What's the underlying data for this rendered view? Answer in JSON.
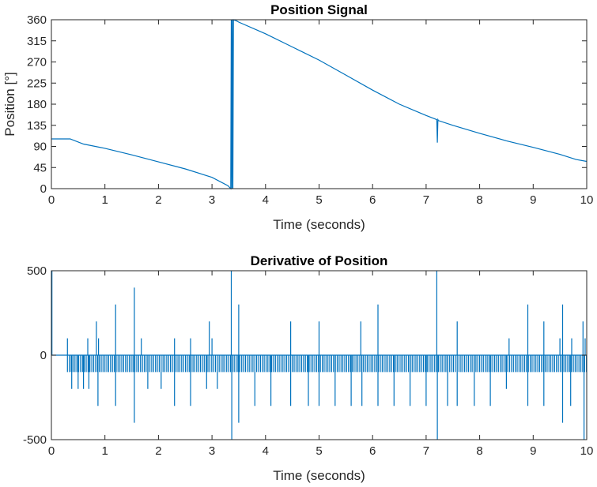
{
  "chart_data": [
    {
      "type": "line",
      "title": "Position Signal",
      "xlabel": "Time (seconds)",
      "ylabel": "Position [°]",
      "xlim": [
        0,
        10
      ],
      "ylim": [
        0,
        360
      ],
      "xticks": [
        0,
        1,
        2,
        3,
        4,
        5,
        6,
        7,
        8,
        9,
        10
      ],
      "yticks": [
        0,
        45,
        90,
        135,
        180,
        225,
        270,
        315,
        360
      ],
      "grid": false,
      "series_color": "#0072BD",
      "series": [
        {
          "x": [
            0,
            0.35,
            0.6,
            1.0,
            1.5,
            2.0,
            2.5,
            3.0,
            3.3,
            3.35,
            3.36,
            3.37,
            3.38,
            3.39,
            3.4,
            3.45,
            3.5,
            4.0,
            4.5,
            5.0,
            5.5,
            6.0,
            6.5,
            7.0,
            7.2,
            7.21,
            7.22,
            7.23,
            7.5,
            8.0,
            8.5,
            9.0,
            9.5,
            9.8,
            10.0
          ],
          "y": [
            106,
            106,
            95,
            86,
            72,
            57,
            42,
            24,
            6,
            0,
            360,
            0,
            360,
            0,
            360,
            358,
            355,
            330,
            302,
            274,
            242,
            210,
            180,
            156,
            147,
            98,
            147,
            145,
            135,
            118,
            102,
            88,
            73,
            62,
            58
          ]
        }
      ]
    },
    {
      "type": "line",
      "title": "Derivative of Position",
      "xlabel": "Time (seconds)",
      "ylabel": "",
      "xlim": [
        0,
        10
      ],
      "ylim": [
        -500,
        500
      ],
      "xticks": [
        0,
        1,
        2,
        3,
        4,
        5,
        6,
        7,
        8,
        9,
        10
      ],
      "yticks": [
        -500,
        0,
        500
      ],
      "grid": false,
      "series_color": "#0072BD",
      "series": [
        {
          "x": [
            0,
            0.02,
            0.03,
            0.04,
            0.3,
            0.32,
            0.34,
            0.36,
            0.38,
            0.42,
            0.5,
            0.6,
            0.7,
            0.9,
            1.2,
            1.55,
            1.7,
            2.0,
            2.3,
            2.6,
            2.95,
            3.2,
            3.34,
            3.36,
            3.37,
            3.38,
            3.39,
            3.4,
            3.5,
            3.8,
            4.1,
            4.47,
            4.8,
            5.0,
            5.3,
            5.6,
            5.8,
            6.1,
            6.4,
            6.7,
            7.0,
            7.2,
            7.21,
            7.22,
            7.3,
            7.5,
            7.58,
            7.9,
            8.2,
            8.5,
            8.8,
            8.9,
            9.2,
            9.55,
            9.7,
            9.85,
            9.95,
            10.0
          ],
          "y": [
            0,
            500,
            -500,
            0,
            0,
            100,
            -100,
            0,
            -200,
            -100,
            -200,
            -100,
            -200,
            -300,
            -300,
            -400,
            -200,
            -200,
            -300,
            -300,
            -200,
            -300,
            -300,
            500,
            -500,
            500,
            -500,
            -300,
            -400,
            -300,
            -300,
            -300,
            -300,
            -300,
            -300,
            -300,
            -200,
            -300,
            -300,
            -300,
            -300,
            500,
            -500,
            -300,
            -300,
            -300,
            -200,
            -300,
            -300,
            -200,
            -300,
            -200,
            -300,
            -400,
            -300,
            -300,
            -500,
            400
          ]
        }
      ],
      "spikes_positive": [
        {
          "x": 0.3,
          "y": 100
        },
        {
          "x": 0.68,
          "y": 100
        },
        {
          "x": 0.84,
          "y": 200
        },
        {
          "x": 0.88,
          "y": 100
        },
        {
          "x": 1.2,
          "y": 300
        },
        {
          "x": 1.55,
          "y": 400
        },
        {
          "x": 1.68,
          "y": 100
        },
        {
          "x": 2.3,
          "y": 100
        },
        {
          "x": 2.6,
          "y": 100
        },
        {
          "x": 2.95,
          "y": 200
        },
        {
          "x": 3.0,
          "y": 100
        },
        {
          "x": 3.36,
          "y": 500
        },
        {
          "x": 3.5,
          "y": 300
        },
        {
          "x": 4.47,
          "y": 200
        },
        {
          "x": 5.0,
          "y": 200
        },
        {
          "x": 5.78,
          "y": 200
        },
        {
          "x": 6.1,
          "y": 300
        },
        {
          "x": 7.2,
          "y": 500
        },
        {
          "x": 7.58,
          "y": 200
        },
        {
          "x": 8.55,
          "y": 100
        },
        {
          "x": 8.9,
          "y": 300
        },
        {
          "x": 9.2,
          "y": 200
        },
        {
          "x": 9.5,
          "y": 100
        },
        {
          "x": 9.55,
          "y": 300
        },
        {
          "x": 9.72,
          "y": 100
        },
        {
          "x": 9.93,
          "y": 200
        },
        {
          "x": 9.97,
          "y": 100
        }
      ],
      "spikes_negative": [
        {
          "x": 0.3,
          "y": -100
        },
        {
          "x": 0.38,
          "y": -200
        },
        {
          "x": 0.5,
          "y": -200
        },
        {
          "x": 0.6,
          "y": -200
        },
        {
          "x": 0.7,
          "y": -200
        },
        {
          "x": 0.87,
          "y": -300
        },
        {
          "x": 1.2,
          "y": -300
        },
        {
          "x": 1.55,
          "y": -400
        },
        {
          "x": 1.8,
          "y": -200
        },
        {
          "x": 2.05,
          "y": -200
        },
        {
          "x": 2.3,
          "y": -300
        },
        {
          "x": 2.6,
          "y": -300
        },
        {
          "x": 2.9,
          "y": -200
        },
        {
          "x": 3.1,
          "y": -200
        },
        {
          "x": 3.37,
          "y": -500
        },
        {
          "x": 3.5,
          "y": -400
        },
        {
          "x": 3.8,
          "y": -300
        },
        {
          "x": 4.1,
          "y": -300
        },
        {
          "x": 4.47,
          "y": -300
        },
        {
          "x": 4.8,
          "y": -300
        },
        {
          "x": 5.0,
          "y": -300
        },
        {
          "x": 5.3,
          "y": -300
        },
        {
          "x": 5.6,
          "y": -300
        },
        {
          "x": 5.8,
          "y": -300
        },
        {
          "x": 6.1,
          "y": -300
        },
        {
          "x": 6.4,
          "y": -300
        },
        {
          "x": 6.7,
          "y": -300
        },
        {
          "x": 7.0,
          "y": -300
        },
        {
          "x": 7.21,
          "y": -500
        },
        {
          "x": 7.4,
          "y": -300
        },
        {
          "x": 7.58,
          "y": -300
        },
        {
          "x": 7.9,
          "y": -300
        },
        {
          "x": 8.2,
          "y": -300
        },
        {
          "x": 8.5,
          "y": -200
        },
        {
          "x": 8.9,
          "y": -300
        },
        {
          "x": 9.2,
          "y": -300
        },
        {
          "x": 9.55,
          "y": -400
        },
        {
          "x": 9.7,
          "y": -300
        },
        {
          "x": 9.95,
          "y": -500
        }
      ]
    }
  ]
}
